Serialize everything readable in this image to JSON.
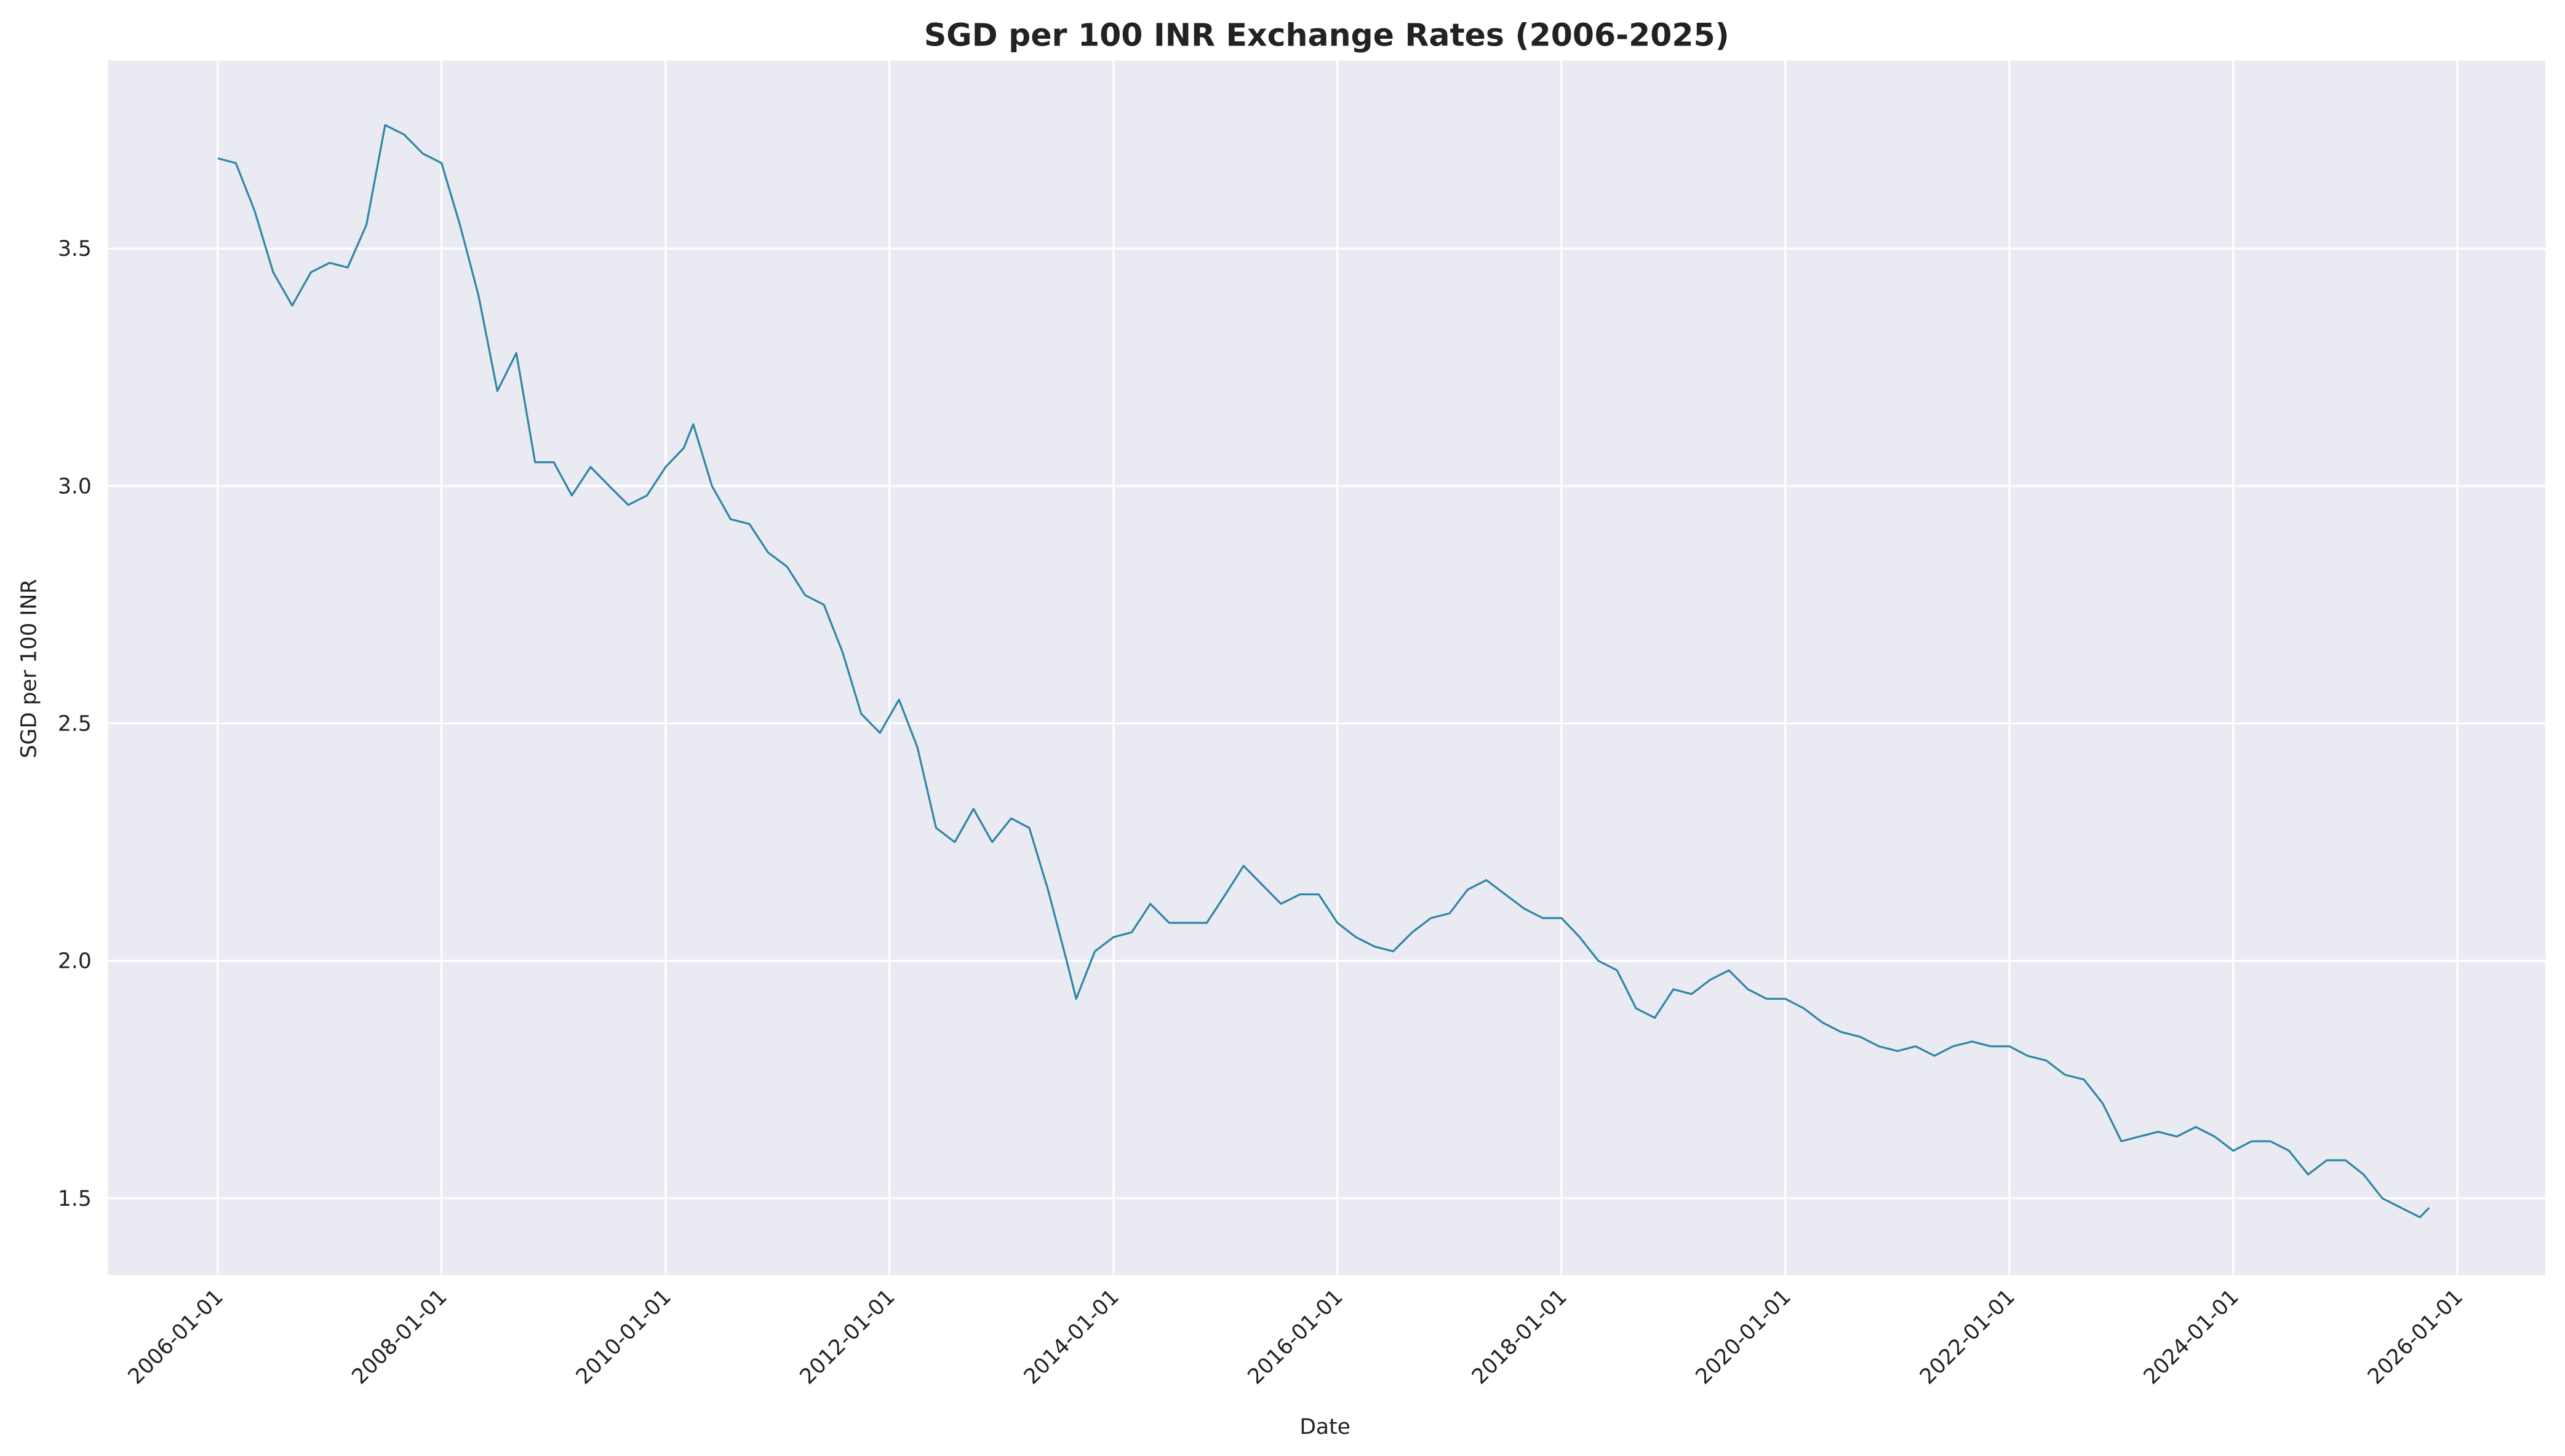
{
  "chart_data": {
    "type": "line",
    "title": "SGD per 100 INR Exchange Rates (2006-2025)",
    "x_label": "Date",
    "y_label": "SGD per 100 INR",
    "color": "#2f86a6",
    "grid": true,
    "xlim": [
      "2005-01-08",
      "2026-10-15"
    ],
    "xticks": [
      "2006-01-01",
      "2008-01-01",
      "2010-01-01",
      "2012-01-01",
      "2014-01-01",
      "2016-01-01",
      "2018-01-01",
      "2020-01-01",
      "2022-01-01",
      "2024-01-01",
      "2026-01-01"
    ],
    "ylim": [
      1.338,
      3.896
    ],
    "yticks": [
      1.5,
      {
        "value": 2,
        "label": "2.0"
      },
      2.5,
      {
        "value": 3,
        "label": "3.0"
      },
      3.5
    ],
    "x": [
      "2006-01-01",
      "2006-03-01",
      "2006-05-01",
      "2006-07-01",
      "2006-09-01",
      "2006-11-01",
      "2007-01-01",
      "2007-03-01",
      "2007-05-01",
      "2007-07-01",
      "2007-09-01",
      "2007-11-01",
      "2008-01-01",
      "2008-03-01",
      "2008-05-01",
      "2008-07-01",
      "2008-09-01",
      "2008-11-01",
      "2009-01-01",
      "2009-03-01",
      "2009-05-01",
      "2009-07-01",
      "2009-09-01",
      "2009-11-01",
      "2010-01-01",
      "2010-03-01",
      "2010-04-01",
      "2010-06-01",
      "2010-08-01",
      "2010-10-01",
      "2010-12-01",
      "2011-02-01",
      "2011-04-01",
      "2011-06-01",
      "2011-08-01",
      "2011-10-01",
      "2011-12-01",
      "2012-02-01",
      "2012-04-01",
      "2012-06-01",
      "2012-08-01",
      "2012-10-01",
      "2012-12-01",
      "2013-02-01",
      "2013-04-01",
      "2013-06-01",
      "2013-08-01",
      "2013-09-01",
      "2013-11-01",
      "2014-01-01",
      "2014-03-01",
      "2014-05-01",
      "2014-07-01",
      "2014-09-01",
      "2014-11-01",
      "2015-01-01",
      "2015-03-01",
      "2015-05-01",
      "2015-07-01",
      "2015-09-01",
      "2015-11-01",
      "2016-01-01",
      "2016-03-01",
      "2016-05-01",
      "2016-07-01",
      "2016-09-01",
      "2016-11-01",
      "2017-01-01",
      "2017-03-01",
      "2017-05-01",
      "2017-07-01",
      "2017-09-01",
      "2017-11-01",
      "2018-01-01",
      "2018-03-01",
      "2018-05-01",
      "2018-07-01",
      "2018-09-01",
      "2018-11-01",
      "2019-01-01",
      "2019-03-01",
      "2019-05-01",
      "2019-07-01",
      "2019-09-01",
      "2019-11-01",
      "2020-01-01",
      "2020-03-01",
      "2020-05-01",
      "2020-07-01",
      "2020-09-01",
      "2020-11-01",
      "2021-01-01",
      "2021-03-01",
      "2021-05-01",
      "2021-07-01",
      "2021-09-01",
      "2021-11-01",
      "2022-01-01",
      "2022-03-01",
      "2022-05-01",
      "2022-07-01",
      "2022-09-01",
      "2022-11-01",
      "2023-01-01",
      "2023-03-01",
      "2023-05-01",
      "2023-07-01",
      "2023-09-01",
      "2023-11-01",
      "2024-01-01",
      "2024-03-01",
      "2024-05-01",
      "2024-07-01",
      "2024-09-01",
      "2024-11-01",
      "2025-01-01",
      "2025-03-01",
      "2025-05-01",
      "2025-07-01",
      "2025-09-01",
      "2025-10-01"
    ],
    "values": [
      3.69,
      3.68,
      3.58,
      3.45,
      3.38,
      3.45,
      3.47,
      3.46,
      3.55,
      3.76,
      3.74,
      3.7,
      3.68,
      3.55,
      3.4,
      3.2,
      3.28,
      3.05,
      3.05,
      2.98,
      3.04,
      3.0,
      2.96,
      2.98,
      3.04,
      3.08,
      3.13,
      3.0,
      2.93,
      2.92,
      2.86,
      2.83,
      2.77,
      2.75,
      2.65,
      2.52,
      2.48,
      2.55,
      2.45,
      2.28,
      2.25,
      2.32,
      2.25,
      2.3,
      2.28,
      2.15,
      2.0,
      1.92,
      2.02,
      2.05,
      2.06,
      2.12,
      2.08,
      2.08,
      2.08,
      2.14,
      2.2,
      2.16,
      2.12,
      2.14,
      2.14,
      2.08,
      2.05,
      2.03,
      2.02,
      2.06,
      2.09,
      2.1,
      2.15,
      2.17,
      2.14,
      2.11,
      2.09,
      2.09,
      2.05,
      2.0,
      1.98,
      1.9,
      1.88,
      1.94,
      1.93,
      1.96,
      1.98,
      1.94,
      1.92,
      1.92,
      1.9,
      1.87,
      1.85,
      1.84,
      1.82,
      1.81,
      1.82,
      1.8,
      1.82,
      1.83,
      1.82,
      1.82,
      1.8,
      1.79,
      1.76,
      1.75,
      1.7,
      1.62,
      1.63,
      1.64,
      1.63,
      1.65,
      1.63,
      1.6,
      1.62,
      1.62,
      1.6,
      1.55,
      1.58,
      1.58,
      1.55,
      1.5,
      1.48,
      1.46,
      1.48
    ]
  }
}
